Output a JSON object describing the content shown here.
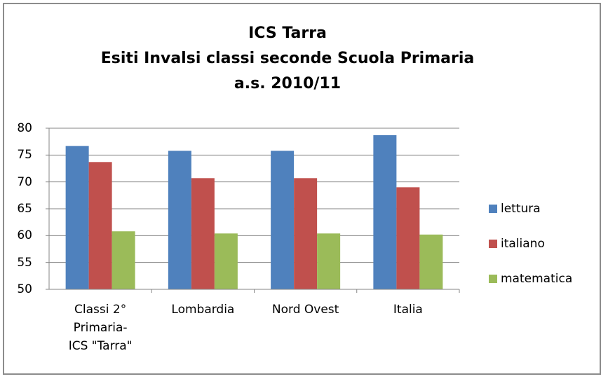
{
  "chart_data": {
    "type": "bar",
    "title": "ICS Tarra\nEsiti Invalsi classi seconde Scuola Primaria\na.s. 2010/11",
    "categories": [
      "Classi 2°\nPrimaria-\nICS \"Tarra\"",
      "Lombardia",
      "Nord Ovest",
      "Italia"
    ],
    "series": [
      {
        "name": "lettura",
        "color": "#4f81bd",
        "values": [
          76.7,
          75.8,
          75.8,
          78.7
        ]
      },
      {
        "name": "italiano",
        "color": "#c0504d",
        "values": [
          73.7,
          70.7,
          70.7,
          69.0
        ]
      },
      {
        "name": "matematica",
        "color": "#9bbb59",
        "values": [
          60.8,
          60.4,
          60.4,
          60.2
        ]
      }
    ],
    "ylim": [
      50,
      80
    ],
    "yticks": [
      50,
      55,
      60,
      65,
      70,
      75,
      80
    ],
    "grid": true,
    "legend": "right"
  }
}
